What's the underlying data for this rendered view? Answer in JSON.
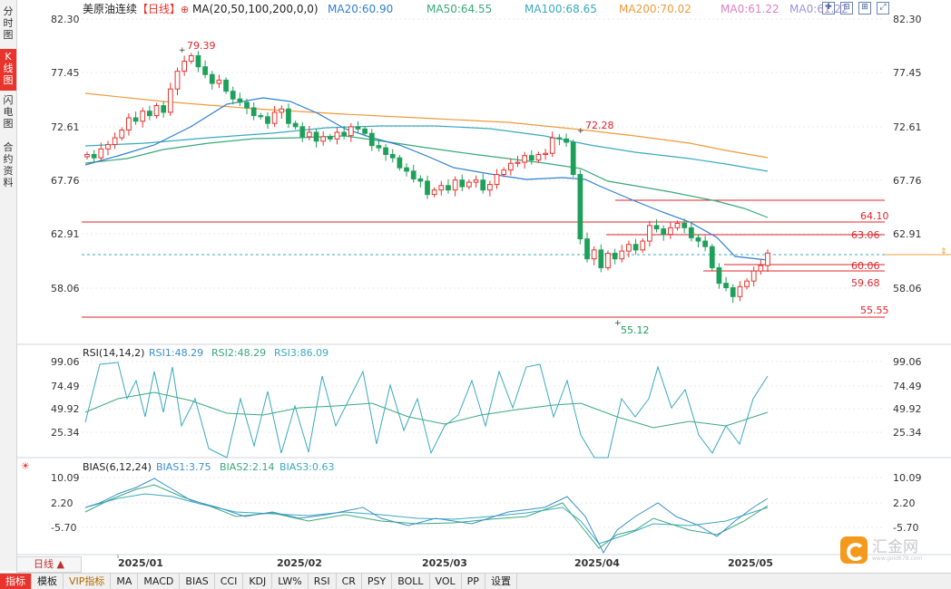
{
  "sidebar": {
    "tabs": [
      {
        "label": "分时图"
      },
      {
        "label": "K线图"
      },
      {
        "label": "闪电图"
      },
      {
        "label": "合约资料"
      }
    ]
  },
  "header": {
    "title": "美原油连续",
    "period": "【日线】",
    "ma_params": "MA(20,50,100,200,0,0)",
    "ma_values": [
      {
        "label": "MA20:60.90",
        "color": "#2f7fd0"
      },
      {
        "label": "MA50:64.55",
        "color": "#3aa97a"
      },
      {
        "label": "MA100:68.65",
        "color": "#3aa9c0"
      },
      {
        "label": "MA200:70.02",
        "color": "#f09a3a"
      },
      {
        "label": "MA0:61.22",
        "color": "#e080c0"
      },
      {
        "label": "MA0:61.22",
        "color": "#a090e0"
      }
    ]
  },
  "colors": {
    "up": "#e9342d",
    "down": "#1ea05a",
    "grid": "#e4e8ee",
    "axis": "#333333"
  },
  "price_axis": [
    "82.30",
    "77.45",
    "72.61",
    "67.76",
    "62.91",
    "58.06"
  ],
  "price_annotations": {
    "high": "79.39",
    "high2": "72.28",
    "low": "55.12"
  },
  "horizontal_lines": [
    "64.10",
    "63.06",
    "60.06",
    "59.68",
    "55.55"
  ],
  "rsi": {
    "title": "RSI(14,14,2)",
    "values": [
      {
        "label": "RSI1:48.29",
        "color": "#3a8fd0"
      },
      {
        "label": "RSI2:48.29",
        "color": "#3aa97a"
      },
      {
        "label": "RSI3:86.09",
        "color": "#3aa9c0"
      }
    ],
    "axis": [
      "99.06",
      "74.49",
      "49.92",
      "25.34"
    ]
  },
  "bias": {
    "title": "BIAS(6,12,24)",
    "values": [
      {
        "label": "BIAS1:3.75",
        "color": "#3a8fd0"
      },
      {
        "label": "BIAS2:2.14",
        "color": "#3aa97a"
      },
      {
        "label": "BIAS3:0.63",
        "color": "#3aa9c0"
      }
    ],
    "axis": [
      "10.09",
      "2.20",
      "-5.70"
    ]
  },
  "date_axis": [
    "2025/01",
    "2025/02",
    "2025/03",
    "2025/04",
    "2025/05"
  ],
  "pager_label": "日线 ▲",
  "bottom_bar": [
    "指标",
    "模板",
    "VIP指标",
    "MA",
    "MACD",
    "BIAS",
    "CCI",
    "KDJ",
    "LW%",
    "RSI",
    "CR",
    "PSY",
    "BOLL",
    "VOL",
    "PP",
    "设置"
  ],
  "logo_text": "汇金网",
  "logo_sub": "www.gold678.com",
  "chart_data": {
    "type": "candlestick",
    "x_range": [
      "2024-12",
      "2025-05"
    ],
    "ylim": [
      55.12,
      82.3
    ],
    "annotations": {
      "high": 79.39,
      "secondary_high": 72.28,
      "low": 55.12
    },
    "last_close": 61.22,
    "levels": [
      64.1,
      63.06,
      60.06,
      59.68,
      55.55
    ],
    "closes": [
      70.1,
      69.8,
      70.6,
      71.0,
      71.6,
      72.3,
      73.4,
      73.1,
      74.0,
      73.6,
      74.5,
      73.9,
      76.0,
      77.6,
      78.5,
      79.0,
      78.0,
      77.3,
      76.5,
      76.8,
      75.8,
      75.1,
      74.8,
      74.3,
      73.6,
      73.5,
      72.9,
      73.9,
      74.2,
      72.9,
      72.6,
      71.7,
      72.1,
      71.3,
      71.7,
      71.5,
      72.1,
      71.8,
      72.6,
      72.4,
      72.0,
      70.9,
      70.7,
      70.1,
      69.8,
      68.9,
      68.6,
      67.9,
      67.7,
      66.5,
      66.9,
      67.3,
      66.9,
      67.8,
      67.2,
      67.6,
      67.8,
      66.9,
      67.4,
      68.3,
      68.7,
      69.3,
      69.4,
      70.0,
      69.6,
      70.1,
      70.2,
      71.6,
      71.5,
      71.2,
      68.3,
      62.5,
      60.7,
      61.5,
      59.9,
      61.2,
      60.7,
      61.4,
      62.0,
      61.5,
      62.3,
      63.7,
      63.4,
      62.9,
      63.5,
      63.9,
      63.5,
      62.6,
      62.3,
      61.8,
      59.9,
      58.5,
      58.1,
      57.3,
      58.2,
      58.7,
      59.6,
      60.1,
      61.22
    ]
  }
}
